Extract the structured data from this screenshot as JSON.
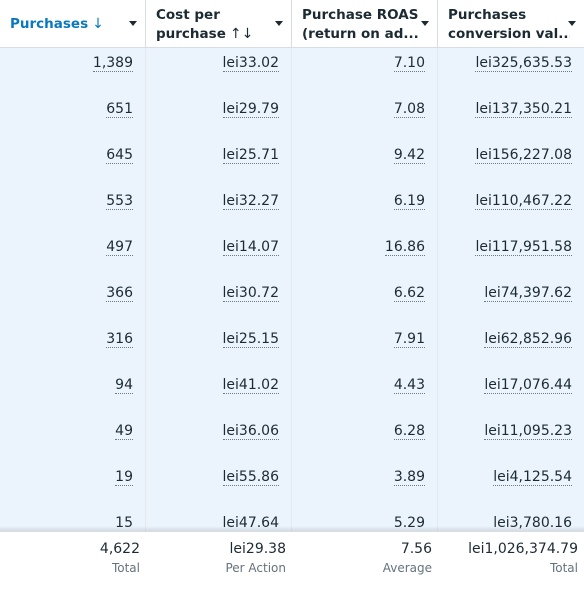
{
  "header": {
    "columns": [
      {
        "label": "Purchases",
        "sort_icon": "↓"
      },
      {
        "label_line1": "Cost per",
        "label_line2": "purchase",
        "sort_icon": "↑↓"
      },
      {
        "label_line1": "Purchase ROAS",
        "label_line2": "(return on ad..."
      },
      {
        "label_line1": "Purchases",
        "label_line2": "conversion val..."
      }
    ]
  },
  "rows": [
    {
      "purchases": "1,389",
      "cost": "lei33.02",
      "roas": "7.10",
      "value": "lei325,635.53"
    },
    {
      "purchases": "651",
      "cost": "lei29.79",
      "roas": "7.08",
      "value": "lei137,350.21"
    },
    {
      "purchases": "645",
      "cost": "lei25.71",
      "roas": "9.42",
      "value": "lei156,227.08"
    },
    {
      "purchases": "553",
      "cost": "lei32.27",
      "roas": "6.19",
      "value": "lei110,467.22"
    },
    {
      "purchases": "497",
      "cost": "lei14.07",
      "roas": "16.86",
      "value": "lei117,951.58"
    },
    {
      "purchases": "366",
      "cost": "lei30.72",
      "roas": "6.62",
      "value": "lei74,397.62"
    },
    {
      "purchases": "316",
      "cost": "lei25.15",
      "roas": "7.91",
      "value": "lei62,852.96"
    },
    {
      "purchases": "94",
      "cost": "lei41.02",
      "roas": "4.43",
      "value": "lei17,076.44"
    },
    {
      "purchases": "49",
      "cost": "lei36.06",
      "roas": "6.28",
      "value": "lei11,095.23"
    },
    {
      "purchases": "19",
      "cost": "lei55.86",
      "roas": "3.89",
      "value": "lei4,125.54"
    },
    {
      "purchases": "15",
      "cost": "lei47.64",
      "roas": "5.29",
      "value": "lei3,780.16"
    }
  ],
  "footer": [
    {
      "value": "4,622",
      "sub": "Total"
    },
    {
      "value": "lei29.38",
      "sub": "Per Action"
    },
    {
      "value": "7.56",
      "sub": "Average"
    },
    {
      "value": "lei1,026,374.79",
      "sub": "Total"
    }
  ],
  "colors": {
    "sorted_header": "#0a78be",
    "row_background": "#ebf4fd",
    "text": "#1c2b33"
  }
}
